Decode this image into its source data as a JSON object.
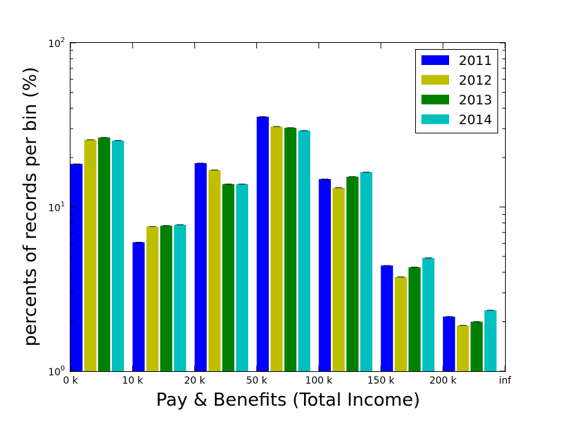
{
  "chart_data": {
    "type": "bar",
    "title": "",
    "xlabel": "Pay & Benefits (Total Income)",
    "ylabel": "percents of records per bin (%)",
    "yscale": "log",
    "ylim": [
      1,
      100
    ],
    "y_tick_labels": [
      {
        "value": 1,
        "base": "10",
        "exp": "0"
      },
      {
        "value": 10,
        "base": "10",
        "exp": "1"
      },
      {
        "value": 100,
        "base": "10",
        "exp": "2"
      }
    ],
    "x_tick_labels": [
      "0 k",
      "10 k",
      "20 k",
      "50 k",
      "100 k",
      "150 k",
      "200 k",
      "inf"
    ],
    "categories": [
      "0 k – 10 k",
      "10 k – 20 k",
      "20 k – 50 k",
      "50 k – 100 k",
      "100 k – 150 k",
      "150 k – 200 k",
      "200 k – inf"
    ],
    "grid": false,
    "legend_position": "top-right",
    "series": [
      {
        "name": "2011",
        "color": "#0000ff",
        "values": [
          18.3,
          6.1,
          18.5,
          35.5,
          14.8,
          4.4,
          2.15
        ]
      },
      {
        "name": "2012",
        "color": "#bfbf00",
        "values": [
          25.7,
          7.6,
          16.8,
          30.9,
          13.1,
          3.75,
          1.9
        ]
      },
      {
        "name": "2013",
        "color": "#008000",
        "values": [
          26.5,
          7.7,
          13.8,
          30.4,
          15.3,
          4.3,
          2.0
        ]
      },
      {
        "name": "2014",
        "color": "#00bfbf",
        "values": [
          25.4,
          7.8,
          13.8,
          29.2,
          16.3,
          4.9,
          2.35
        ]
      }
    ]
  }
}
